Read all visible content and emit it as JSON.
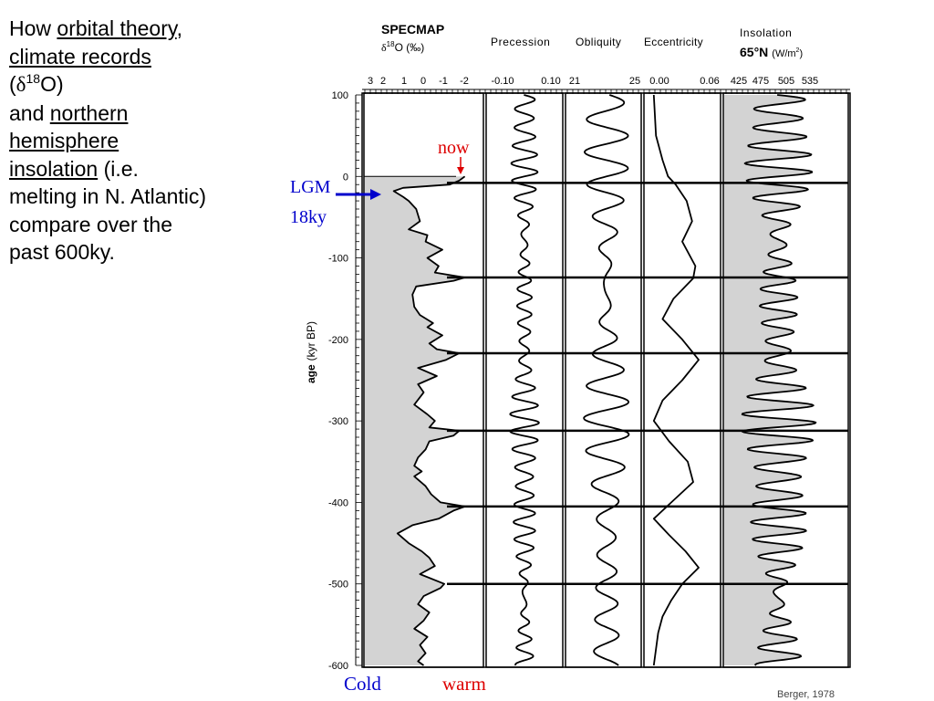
{
  "slide": {
    "how": "How",
    "orbital_theory": "orbital theory",
    "comma": ",",
    "climate_records": "climate records",
    "paren_open": "(",
    "delta": "δ",
    "sup18": "18",
    "o_paren": "O)",
    "and": "and",
    "northern": "northern",
    "hemisphere": "hemisphere",
    "insolation": "insolation",
    "ie": " (i.e.",
    "line_melting": "melting in N. Atlantic)",
    "line_compare": "compare over the",
    "line_past": "past 600ky."
  },
  "annotations": {
    "now": "now",
    "lgm": "LGM",
    "lgm_age": "18ky",
    "cold": "Cold",
    "warm": "warm",
    "credit": "Berger, 1978"
  },
  "colors": {
    "fill": "#d3d3d3",
    "line": "#000000",
    "blue": "#0000cc",
    "red": "#dd0000"
  },
  "chart_data": {
    "type": "line",
    "y_axis": {
      "label_bold": "age",
      "label_rest": "(kyr BP)",
      "ticks": [
        100,
        0,
        -100,
        -200,
        -300,
        -400,
        -500,
        -600
      ],
      "tick_labels": [
        "100",
        "0",
        "-100",
        "-200",
        "-300",
        "-400",
        "-500",
        "-600"
      ],
      "range": [
        100,
        -600
      ]
    },
    "terminations": [
      -8,
      -124,
      -217,
      -312,
      -405,
      -500
    ],
    "panels": [
      {
        "key": "d18o",
        "title_line1": "SPECMAP",
        "title_delta": "δ",
        "title_sup": "18",
        "title_rest": "O (‰)",
        "tick_labels": [
          "3",
          "2",
          "1",
          "0",
          "-1",
          "-2"
        ],
        "fill": true,
        "fill_side": "left",
        "series": [
          [
            0,
            -1.8
          ],
          [
            -5,
            -1.5
          ],
          [
            -10,
            -1.0
          ],
          [
            -14,
            1.5
          ],
          [
            -18,
            2.0
          ],
          [
            -25,
            1.5
          ],
          [
            -30,
            1.2
          ],
          [
            -40,
            0.8
          ],
          [
            -55,
            0.6
          ],
          [
            -65,
            1.2
          ],
          [
            -72,
            0.2
          ],
          [
            -80,
            0.3
          ],
          [
            -90,
            -0.6
          ],
          [
            -100,
            0.2
          ],
          [
            -110,
            -0.4
          ],
          [
            -118,
            -0.2
          ],
          [
            -124,
            -1.8
          ],
          [
            -128,
            -1.2
          ],
          [
            -135,
            0.8
          ],
          [
            -145,
            1.0
          ],
          [
            -160,
            0.9
          ],
          [
            -170,
            0.6
          ],
          [
            -180,
            -0.1
          ],
          [
            -185,
            0.2
          ],
          [
            -195,
            -0.6
          ],
          [
            -205,
            0.1
          ],
          [
            -212,
            -0.3
          ],
          [
            -217,
            -1.5
          ],
          [
            -225,
            -0.8
          ],
          [
            -235,
            0.7
          ],
          [
            -245,
            -0.3
          ],
          [
            -255,
            0.7
          ],
          [
            -265,
            0.4
          ],
          [
            -280,
            0.9
          ],
          [
            -292,
            0.2
          ],
          [
            -300,
            -0.2
          ],
          [
            -308,
            0.1
          ],
          [
            -312,
            -1.5
          ],
          [
            -318,
            -1.2
          ],
          [
            -325,
            0.1
          ],
          [
            -335,
            0.3
          ],
          [
            -345,
            0.7
          ],
          [
            -355,
            0.9
          ],
          [
            -362,
            0.5
          ],
          [
            -368,
            0.9
          ],
          [
            -380,
            0.3
          ],
          [
            -390,
            0.0
          ],
          [
            -400,
            -0.5
          ],
          [
            -405,
            -1.8
          ],
          [
            -410,
            -1.2
          ],
          [
            -420,
            -0.4
          ],
          [
            -428,
            1.0
          ],
          [
            -438,
            1.8
          ],
          [
            -450,
            1.2
          ],
          [
            -460,
            0.5
          ],
          [
            -468,
            0.1
          ],
          [
            -478,
            -0.2
          ],
          [
            -488,
            0.6
          ],
          [
            -500,
            -0.7
          ],
          [
            -505,
            -0.5
          ],
          [
            -515,
            0.4
          ],
          [
            -525,
            0.7
          ],
          [
            -535,
            0.1
          ],
          [
            -545,
            0.4
          ],
          [
            -555,
            0.9
          ],
          [
            -565,
            0.2
          ],
          [
            -575,
            0.6
          ],
          [
            -585,
            0.3
          ],
          [
            -595,
            0.7
          ],
          [
            -600,
            0.4
          ]
        ]
      },
      {
        "key": "precession",
        "title_line1": "Precession",
        "tick_labels": [
          "-0.10",
          "0.10"
        ],
        "fill": false,
        "amp": 0.034,
        "period": 22,
        "mean": 0.0,
        "xrange": [
          -0.1,
          0.1
        ]
      },
      {
        "key": "obliquity",
        "title_line1": "Obliquity",
        "tick_labels": [
          "21",
          "25"
        ],
        "fill": false,
        "amp": 1.1,
        "period": 41,
        "mean": 23.2,
        "xrange": [
          21,
          25
        ]
      },
      {
        "key": "eccentricity",
        "title_line1": "Eccentricity",
        "tick_labels": [
          "0.00",
          "0.06"
        ],
        "fill": false,
        "series": [
          [
            100,
            0.004
          ],
          [
            50,
            0.006
          ],
          [
            20,
            0.012
          ],
          [
            0,
            0.017
          ],
          [
            -10,
            0.024
          ],
          [
            -30,
            0.034
          ],
          [
            -55,
            0.039
          ],
          [
            -80,
            0.03
          ],
          [
            -110,
            0.042
          ],
          [
            -125,
            0.04
          ],
          [
            -150,
            0.022
          ],
          [
            -175,
            0.012
          ],
          [
            -200,
            0.03
          ],
          [
            -225,
            0.045
          ],
          [
            -250,
            0.03
          ],
          [
            -275,
            0.012
          ],
          [
            -300,
            0.004
          ],
          [
            -325,
            0.018
          ],
          [
            -350,
            0.035
          ],
          [
            -375,
            0.04
          ],
          [
            -400,
            0.02
          ],
          [
            -420,
            0.004
          ],
          [
            -440,
            0.018
          ],
          [
            -460,
            0.033
          ],
          [
            -480,
            0.045
          ],
          [
            -500,
            0.03
          ],
          [
            -520,
            0.02
          ],
          [
            -540,
            0.012
          ],
          [
            -560,
            0.008
          ],
          [
            -580,
            0.006
          ],
          [
            -600,
            0.004
          ]
        ]
      },
      {
        "key": "insolation",
        "title_line1": "Insolation",
        "title_line2": "65°N",
        "title_unit": "(W/m",
        "title_sup": "2",
        "title_close": ")",
        "tick_labels": [
          "425",
          "475",
          "505",
          "535"
        ],
        "fill": true,
        "fill_side": "left",
        "amp": 40,
        "period": 22,
        "mean": 470,
        "xrange": [
          400,
          560
        ]
      }
    ]
  }
}
